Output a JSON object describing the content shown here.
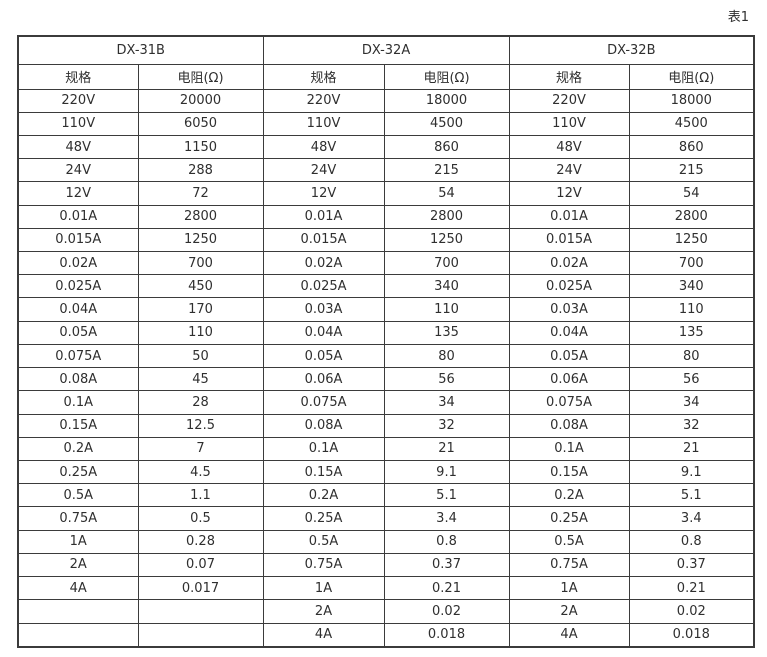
{
  "caption": "表1",
  "table": {
    "groups": [
      {
        "name": "DX-31B",
        "headers": [
          "规格",
          "电阻(Ω)"
        ],
        "rows": [
          [
            "220V",
            "20000"
          ],
          [
            "110V",
            "6050"
          ],
          [
            "48V",
            "1150"
          ],
          [
            "24V",
            "288"
          ],
          [
            "12V",
            "72"
          ],
          [
            "0.01A",
            "2800"
          ],
          [
            "0.015A",
            "1250"
          ],
          [
            "0.02A",
            "700"
          ],
          [
            "0.025A",
            "450"
          ],
          [
            "0.04A",
            "170"
          ],
          [
            "0.05A",
            "110"
          ],
          [
            "0.075A",
            "50"
          ],
          [
            "0.08A",
            "45"
          ],
          [
            "0.1A",
            "28"
          ],
          [
            "0.15A",
            "12.5"
          ],
          [
            "0.2A",
            "7"
          ],
          [
            "0.25A",
            "4.5"
          ],
          [
            "0.5A",
            "1.1"
          ],
          [
            "0.75A",
            "0.5"
          ],
          [
            "1A",
            "0.28"
          ],
          [
            "2A",
            "0.07"
          ],
          [
            "4A",
            "0.017"
          ],
          [
            "",
            ""
          ],
          [
            "",
            ""
          ]
        ]
      },
      {
        "name": "DX-32A",
        "headers": [
          "规格",
          "电阻(Ω)"
        ],
        "rows": [
          [
            "220V",
            "18000"
          ],
          [
            "110V",
            "4500"
          ],
          [
            "48V",
            "860"
          ],
          [
            "24V",
            "215"
          ],
          [
            "12V",
            "54"
          ],
          [
            "0.01A",
            "2800"
          ],
          [
            "0.015A",
            "1250"
          ],
          [
            "0.02A",
            "700"
          ],
          [
            "0.025A",
            "340"
          ],
          [
            "0.03A",
            "110"
          ],
          [
            "0.04A",
            "135"
          ],
          [
            "0.05A",
            "80"
          ],
          [
            "0.06A",
            "56"
          ],
          [
            "0.075A",
            "34"
          ],
          [
            "0.08A",
            "32"
          ],
          [
            "0.1A",
            "21"
          ],
          [
            "0.15A",
            "9.1"
          ],
          [
            "0.2A",
            "5.1"
          ],
          [
            "0.25A",
            "3.4"
          ],
          [
            "0.5A",
            "0.8"
          ],
          [
            "0.75A",
            "0.37"
          ],
          [
            "1A",
            "0.21"
          ],
          [
            "2A",
            "0.02"
          ],
          [
            "4A",
            "0.018"
          ]
        ]
      },
      {
        "name": "DX-32B",
        "headers": [
          "规格",
          "电阻(Ω)"
        ],
        "rows": [
          [
            "220V",
            "18000"
          ],
          [
            "110V",
            "4500"
          ],
          [
            "48V",
            "860"
          ],
          [
            "24V",
            "215"
          ],
          [
            "12V",
            "54"
          ],
          [
            "0.01A",
            "2800"
          ],
          [
            "0.015A",
            "1250"
          ],
          [
            "0.02A",
            "700"
          ],
          [
            "0.025A",
            "340"
          ],
          [
            "0.03A",
            "110"
          ],
          [
            "0.04A",
            "135"
          ],
          [
            "0.05A",
            "80"
          ],
          [
            "0.06A",
            "56"
          ],
          [
            "0.075A",
            "34"
          ],
          [
            "0.08A",
            "32"
          ],
          [
            "0.1A",
            "21"
          ],
          [
            "0.15A",
            "9.1"
          ],
          [
            "0.2A",
            "5.1"
          ],
          [
            "0.25A",
            "3.4"
          ],
          [
            "0.5A",
            "0.8"
          ],
          [
            "0.75A",
            "0.37"
          ],
          [
            "1A",
            "0.21"
          ],
          [
            "2A",
            "0.02"
          ],
          [
            "4A",
            "0.018"
          ]
        ]
      }
    ]
  }
}
